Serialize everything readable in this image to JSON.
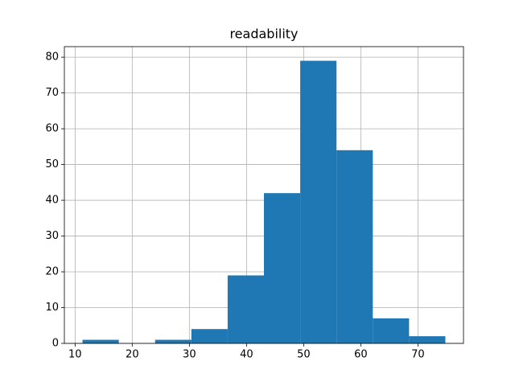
{
  "chart_data": {
    "type": "histogram",
    "title": "readability",
    "bins": [
      11.3,
      17.65,
      24.0,
      30.35,
      36.7,
      43.05,
      49.4,
      55.75,
      62.1,
      68.45,
      74.8
    ],
    "values": [
      1,
      0,
      1,
      4,
      19,
      42,
      79,
      54,
      7,
      2
    ],
    "color": "#1f77b4",
    "xlim": [
      8.125,
      77.975
    ],
    "xticks": [
      10,
      20,
      30,
      40,
      50,
      60,
      70
    ],
    "ylim": [
      0,
      82.95
    ],
    "yticks": [
      0,
      10,
      20,
      30,
      40,
      50,
      60,
      70,
      80
    ],
    "grid": true
  }
}
